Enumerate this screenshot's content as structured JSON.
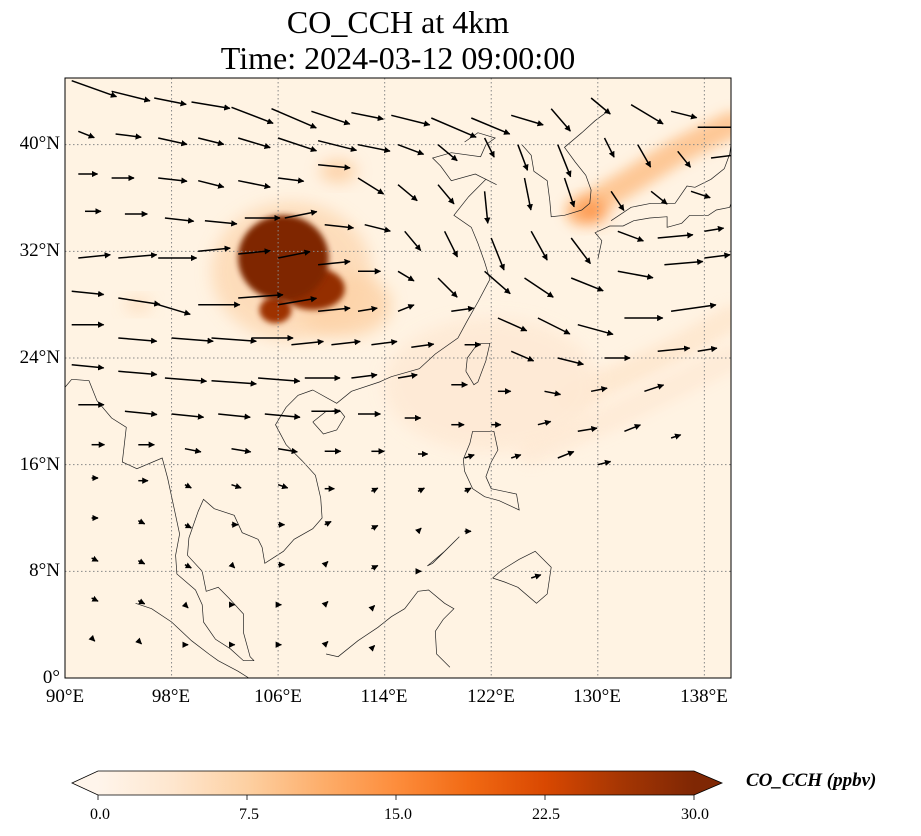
{
  "title": {
    "line1": "CO_CCH at 4km",
    "line2": "Time: 2024-03-12 09:00:00"
  },
  "map": {
    "extent": {
      "lon_min": 90,
      "lon_max": 140,
      "lat_min": 0,
      "lat_max": 45
    },
    "lat_ticks": [
      {
        "value": 40,
        "label": "40°N"
      },
      {
        "value": 32,
        "label": "32°N"
      },
      {
        "value": 24,
        "label": "24°N"
      },
      {
        "value": 16,
        "label": "16°N"
      },
      {
        "value": 8,
        "label": "8°N"
      },
      {
        "value": 0,
        "label": "0°"
      }
    ],
    "lon_ticks": [
      {
        "value": 90,
        "label": "90°E"
      },
      {
        "value": 98,
        "label": "98°E"
      },
      {
        "value": 106,
        "label": "106°E"
      },
      {
        "value": 114,
        "label": "114°E"
      },
      {
        "value": 122,
        "label": "122°E"
      },
      {
        "value": 130,
        "label": "130°E"
      },
      {
        "value": 138,
        "label": "138°E"
      }
    ],
    "gridlines": true,
    "gridline_color": "#888888",
    "background_color": "#fff3e3",
    "coastline_color": "#222222",
    "arrow_color": "#000000"
  },
  "colorbar": {
    "label": "CO_CCH (ppbv)",
    "min": 0,
    "max": 30,
    "extend": "both",
    "colormap": [
      "#fff5eb",
      "#fee6ce",
      "#fdd0a2",
      "#fdae6b",
      "#fd8d3c",
      "#f16913",
      "#d94801",
      "#a63603",
      "#7f2704"
    ],
    "ticks": [
      {
        "value": 0,
        "label": "0.0"
      },
      {
        "value": 7.5,
        "label": "7.5"
      },
      {
        "value": 15,
        "label": "15.0"
      },
      {
        "value": 22.5,
        "label": "22.5"
      },
      {
        "value": 30,
        "label": "30.0"
      }
    ]
  },
  "concentration_features": [
    {
      "name": "sichuan-basin-core",
      "lon": 106.4,
      "lat": 31.5,
      "rx": 3.4,
      "ry": 3.2,
      "value": 30
    },
    {
      "name": "sichuan-basin-south",
      "lon": 108.6,
      "lat": 29.2,
      "rx": 2.4,
      "ry": 1.6,
      "value": 28
    },
    {
      "name": "sichuan-basin-tail",
      "lon": 105.8,
      "lat": 27.6,
      "rx": 1.2,
      "ry": 1.0,
      "value": 27
    },
    {
      "name": "basin-halo",
      "lon": 107.0,
      "lat": 30.5,
      "rx": 6.0,
      "ry": 5.2,
      "value": 6
    },
    {
      "name": "hunan-plume",
      "lon": 111.0,
      "lat": 28.0,
      "rx": 3.5,
      "ry": 2.4,
      "value": 7
    },
    {
      "name": "north-china-spot",
      "lon": 110.5,
      "lat": 38.0,
      "rx": 1.4,
      "ry": 0.8,
      "value": 8
    },
    {
      "name": "korea-japan-spot",
      "lon": 129.5,
      "lat": 35.0,
      "rx": 1.2,
      "ry": 0.9,
      "value": 15
    },
    {
      "name": "myanmar-spot",
      "lon": 95.5,
      "lat": 28.0,
      "rx": 1.0,
      "ry": 0.5,
      "value": 6
    },
    {
      "name": "east-sea-haze",
      "lon": 122.0,
      "lat": 22.0,
      "rx": 8.0,
      "ry": 5.0,
      "value": 3
    }
  ],
  "plume_bands": [
    {
      "name": "japan-northeast-plume",
      "points": [
        [
          128.5,
          35.0
        ],
        [
          132.0,
          37.0
        ],
        [
          136.0,
          39.5
        ],
        [
          140.0,
          41.5
        ]
      ],
      "value": 10
    },
    {
      "name": "pacific-southeast-plume",
      "points": [
        [
          128.0,
          21.0
        ],
        [
          132.5,
          23.0
        ],
        [
          136.5,
          25.0
        ],
        [
          140.0,
          27.0
        ]
      ],
      "value": 4
    },
    {
      "name": "pacific-band-2",
      "points": [
        [
          125.0,
          17.0
        ],
        [
          131.0,
          19.5
        ],
        [
          136.0,
          22.0
        ],
        [
          140.0,
          24.0
        ]
      ],
      "value": 3
    }
  ],
  "wind_vectors": [
    {
      "lon": 90.5,
      "lat": 44.8,
      "u": 14,
      "v": -5
    },
    {
      "lon": 93.5,
      "lat": 44.0,
      "u": 12,
      "v": -3
    },
    {
      "lon": 96.7,
      "lat": 43.5,
      "u": 10,
      "v": -2
    },
    {
      "lon": 99.5,
      "lat": 43.2,
      "u": 12,
      "v": -2
    },
    {
      "lon": 102.5,
      "lat": 42.8,
      "u": 13,
      "v": -5
    },
    {
      "lon": 105.5,
      "lat": 42.7,
      "u": 14,
      "v": -6
    },
    {
      "lon": 108.5,
      "lat": 42.5,
      "u": 12,
      "v": -4
    },
    {
      "lon": 111.5,
      "lat": 42.4,
      "u": 10,
      "v": -2
    },
    {
      "lon": 114.5,
      "lat": 42.2,
      "u": 12,
      "v": -3
    },
    {
      "lon": 117.5,
      "lat": 42.0,
      "u": 14,
      "v": -6
    },
    {
      "lon": 120.5,
      "lat": 42.0,
      "u": 12,
      "v": -5
    },
    {
      "lon": 123.5,
      "lat": 42.2,
      "u": 10,
      "v": -3
    },
    {
      "lon": 126.5,
      "lat": 42.7,
      "u": 6,
      "v": -7
    },
    {
      "lon": 129.5,
      "lat": 43.5,
      "u": 6,
      "v": -5
    },
    {
      "lon": 132.5,
      "lat": 43.0,
      "u": 10,
      "v": -6
    },
    {
      "lon": 135.5,
      "lat": 42.5,
      "u": 8,
      "v": -2
    },
    {
      "lon": 137.5,
      "lat": 41.3,
      "u": 13,
      "v": 0
    },
    {
      "lon": 91.0,
      "lat": 41.0,
      "u": 5,
      "v": -2
    },
    {
      "lon": 93.8,
      "lat": 40.8,
      "u": 8,
      "v": -1
    },
    {
      "lon": 97.0,
      "lat": 40.5,
      "u": 9,
      "v": -2
    },
    {
      "lon": 100.0,
      "lat": 40.5,
      "u": 8,
      "v": -2
    },
    {
      "lon": 103.0,
      "lat": 40.5,
      "u": 10,
      "v": -3
    },
    {
      "lon": 106.0,
      "lat": 40.5,
      "u": 12,
      "v": -4
    },
    {
      "lon": 109.0,
      "lat": 40.3,
      "u": 12,
      "v": -3
    },
    {
      "lon": 112.0,
      "lat": 40.0,
      "u": 10,
      "v": -2
    },
    {
      "lon": 115.0,
      "lat": 40.0,
      "u": 8,
      "v": -3
    },
    {
      "lon": 118.0,
      "lat": 40.0,
      "u": 6,
      "v": -5
    },
    {
      "lon": 121.5,
      "lat": 40.5,
      "u": 3,
      "v": -6
    },
    {
      "lon": 124.0,
      "lat": 40.0,
      "u": 3,
      "v": -8
    },
    {
      "lon": 127.0,
      "lat": 40.0,
      "u": 4,
      "v": -10
    },
    {
      "lon": 130.5,
      "lat": 40.5,
      "u": 3,
      "v": -6
    },
    {
      "lon": 133.0,
      "lat": 40.0,
      "u": 4,
      "v": -7
    },
    {
      "lon": 136.0,
      "lat": 39.5,
      "u": 4,
      "v": -5
    },
    {
      "lon": 138.5,
      "lat": 39.0,
      "u": 8,
      "v": 1
    },
    {
      "lon": 91.0,
      "lat": 37.8,
      "u": 6,
      "v": 0
    },
    {
      "lon": 93.5,
      "lat": 37.5,
      "u": 7,
      "v": 0
    },
    {
      "lon": 97.0,
      "lat": 37.5,
      "u": 9,
      "v": -1
    },
    {
      "lon": 100.0,
      "lat": 37.3,
      "u": 8,
      "v": -2
    },
    {
      "lon": 103.0,
      "lat": 37.3,
      "u": 10,
      "v": -2
    },
    {
      "lon": 106.0,
      "lat": 37.5,
      "u": 8,
      "v": -1
    },
    {
      "lon": 109.0,
      "lat": 38.5,
      "u": 10,
      "v": -1
    },
    {
      "lon": 112.0,
      "lat": 37.5,
      "u": 8,
      "v": -5
    },
    {
      "lon": 115.0,
      "lat": 37.0,
      "u": 6,
      "v": -5
    },
    {
      "lon": 118.0,
      "lat": 37.0,
      "u": 5,
      "v": -6
    },
    {
      "lon": 121.5,
      "lat": 36.5,
      "u": 1,
      "v": -10
    },
    {
      "lon": 124.5,
      "lat": 37.5,
      "u": 2,
      "v": -10
    },
    {
      "lon": 127.5,
      "lat": 37.5,
      "u": 3,
      "v": -9
    },
    {
      "lon": 131.0,
      "lat": 36.5,
      "u": 4,
      "v": -6
    },
    {
      "lon": 134.0,
      "lat": 36.5,
      "u": 5,
      "v": -4
    },
    {
      "lon": 137.0,
      "lat": 36.5,
      "u": 6,
      "v": -2
    },
    {
      "lon": 91.5,
      "lat": 35.0,
      "u": 5,
      "v": 0
    },
    {
      "lon": 94.5,
      "lat": 34.8,
      "u": 7,
      "v": 0
    },
    {
      "lon": 97.5,
      "lat": 34.5,
      "u": 9,
      "v": -1
    },
    {
      "lon": 100.5,
      "lat": 34.3,
      "u": 10,
      "v": -1
    },
    {
      "lon": 103.5,
      "lat": 34.5,
      "u": 11,
      "v": 0
    },
    {
      "lon": 106.5,
      "lat": 34.5,
      "u": 10,
      "v": 2
    },
    {
      "lon": 109.5,
      "lat": 34.0,
      "u": 9,
      "v": -1
    },
    {
      "lon": 112.5,
      "lat": 34.0,
      "u": 8,
      "v": -2
    },
    {
      "lon": 115.5,
      "lat": 33.5,
      "u": 5,
      "v": -6
    },
    {
      "lon": 118.5,
      "lat": 33.5,
      "u": 4,
      "v": -8
    },
    {
      "lon": 122.0,
      "lat": 33.0,
      "u": 4,
      "v": -10
    },
    {
      "lon": 125.0,
      "lat": 33.5,
      "u": 5,
      "v": -9
    },
    {
      "lon": 128.0,
      "lat": 33.0,
      "u": 6,
      "v": -8
    },
    {
      "lon": 131.5,
      "lat": 33.5,
      "u": 8,
      "v": -3
    },
    {
      "lon": 134.5,
      "lat": 33.0,
      "u": 11,
      "v": 1
    },
    {
      "lon": 138.0,
      "lat": 33.5,
      "u": 6,
      "v": 1
    },
    {
      "lon": 91.0,
      "lat": 31.5,
      "u": 10,
      "v": 1
    },
    {
      "lon": 94.0,
      "lat": 31.5,
      "u": 12,
      "v": 1
    },
    {
      "lon": 97.0,
      "lat": 31.5,
      "u": 12,
      "v": 0
    },
    {
      "lon": 100.0,
      "lat": 32.0,
      "u": 10,
      "v": 1
    },
    {
      "lon": 103.0,
      "lat": 31.8,
      "u": 10,
      "v": 1
    },
    {
      "lon": 106.0,
      "lat": 31.5,
      "u": 10,
      "v": 2
    },
    {
      "lon": 109.0,
      "lat": 31.0,
      "u": 10,
      "v": 1
    },
    {
      "lon": 112.0,
      "lat": 30.5,
      "u": 7,
      "v": 0
    },
    {
      "lon": 115.0,
      "lat": 30.5,
      "u": 5,
      "v": -3
    },
    {
      "lon": 118.0,
      "lat": 30.0,
      "u": 6,
      "v": -6
    },
    {
      "lon": 121.5,
      "lat": 30.5,
      "u": 8,
      "v": -7
    },
    {
      "lon": 124.5,
      "lat": 30.0,
      "u": 9,
      "v": -6
    },
    {
      "lon": 128.0,
      "lat": 30.0,
      "u": 10,
      "v": -4
    },
    {
      "lon": 131.5,
      "lat": 30.5,
      "u": 11,
      "v": -2
    },
    {
      "lon": 135.0,
      "lat": 31.0,
      "u": 12,
      "v": 1
    },
    {
      "lon": 138.0,
      "lat": 31.5,
      "u": 8,
      "v": 1
    },
    {
      "lon": 90.5,
      "lat": 29.0,
      "u": 10,
      "v": -1
    },
    {
      "lon": 94.0,
      "lat": 28.5,
      "u": 13,
      "v": -2
    },
    {
      "lon": 97.0,
      "lat": 28.0,
      "u": 10,
      "v": -3
    },
    {
      "lon": 100.0,
      "lat": 28.0,
      "u": 13,
      "v": 0
    },
    {
      "lon": 103.0,
      "lat": 28.5,
      "u": 14,
      "v": 1
    },
    {
      "lon": 106.0,
      "lat": 28.0,
      "u": 12,
      "v": 2
    },
    {
      "lon": 109.0,
      "lat": 27.5,
      "u": 10,
      "v": 1
    },
    {
      "lon": 112.0,
      "lat": 27.5,
      "u": 6,
      "v": 1
    },
    {
      "lon": 115.0,
      "lat": 27.5,
      "u": 5,
      "v": 2
    },
    {
      "lon": 119.0,
      "lat": 27.5,
      "u": 7,
      "v": 1
    },
    {
      "lon": 122.5,
      "lat": 27.0,
      "u": 9,
      "v": -4
    },
    {
      "lon": 125.5,
      "lat": 27.0,
      "u": 10,
      "v": -5
    },
    {
      "lon": 128.5,
      "lat": 26.5,
      "u": 11,
      "v": -3
    },
    {
      "lon": 132.0,
      "lat": 27.0,
      "u": 12,
      "v": 0
    },
    {
      "lon": 135.5,
      "lat": 27.5,
      "u": 14,
      "v": 2
    },
    {
      "lon": 90.5,
      "lat": 26.5,
      "u": 10,
      "v": 0
    },
    {
      "lon": 94.0,
      "lat": 25.5,
      "u": 12,
      "v": -1
    },
    {
      "lon": 98.0,
      "lat": 25.5,
      "u": 13,
      "v": -1
    },
    {
      "lon": 101.0,
      "lat": 25.5,
      "u": 14,
      "v": -1
    },
    {
      "lon": 104.0,
      "lat": 25.5,
      "u": 13,
      "v": 0
    },
    {
      "lon": 107.0,
      "lat": 25.0,
      "u": 10,
      "v": 1
    },
    {
      "lon": 110.0,
      "lat": 25.0,
      "u": 9,
      "v": 1
    },
    {
      "lon": 113.0,
      "lat": 25.0,
      "u": 8,
      "v": 1
    },
    {
      "lon": 116.0,
      "lat": 24.8,
      "u": 7,
      "v": 1
    },
    {
      "lon": 120.0,
      "lat": 25.0,
      "u": 5,
      "v": 0
    },
    {
      "lon": 123.5,
      "lat": 24.5,
      "u": 7,
      "v": -3
    },
    {
      "lon": 127.0,
      "lat": 24.0,
      "u": 8,
      "v": -2
    },
    {
      "lon": 130.5,
      "lat": 24.0,
      "u": 8,
      "v": 0
    },
    {
      "lon": 134.5,
      "lat": 24.5,
      "u": 10,
      "v": 1
    },
    {
      "lon": 137.5,
      "lat": 24.5,
      "u": 6,
      "v": 1
    },
    {
      "lon": 90.5,
      "lat": 23.5,
      "u": 10,
      "v": -1
    },
    {
      "lon": 94.0,
      "lat": 23.0,
      "u": 12,
      "v": -1
    },
    {
      "lon": 97.5,
      "lat": 22.5,
      "u": 13,
      "v": -1
    },
    {
      "lon": 101.0,
      "lat": 22.3,
      "u": 14,
      "v": -1
    },
    {
      "lon": 104.5,
      "lat": 22.5,
      "u": 13,
      "v": -1
    },
    {
      "lon": 108.0,
      "lat": 22.5,
      "u": 11,
      "v": 0
    },
    {
      "lon": 111.5,
      "lat": 22.5,
      "u": 8,
      "v": 1
    },
    {
      "lon": 115.0,
      "lat": 22.5,
      "u": 6,
      "v": 1
    },
    {
      "lon": 119.0,
      "lat": 22.0,
      "u": 5,
      "v": 0
    },
    {
      "lon": 122.5,
      "lat": 21.5,
      "u": 4,
      "v": 0
    },
    {
      "lon": 126.0,
      "lat": 21.5,
      "u": 5,
      "v": -1
    },
    {
      "lon": 129.5,
      "lat": 21.5,
      "u": 5,
      "v": 1
    },
    {
      "lon": 133.5,
      "lat": 21.5,
      "u": 6,
      "v": 2
    },
    {
      "lon": 91.0,
      "lat": 20.5,
      "u": 8,
      "v": 0
    },
    {
      "lon": 94.5,
      "lat": 20.0,
      "u": 10,
      "v": -1
    },
    {
      "lon": 98.0,
      "lat": 19.8,
      "u": 10,
      "v": -1
    },
    {
      "lon": 101.5,
      "lat": 19.8,
      "u": 10,
      "v": -1
    },
    {
      "lon": 105.0,
      "lat": 19.8,
      "u": 11,
      "v": -1
    },
    {
      "lon": 108.5,
      "lat": 20.0,
      "u": 9,
      "v": 0
    },
    {
      "lon": 112.0,
      "lat": 19.8,
      "u": 7,
      "v": 0
    },
    {
      "lon": 115.5,
      "lat": 19.5,
      "u": 5,
      "v": 0
    },
    {
      "lon": 119.0,
      "lat": 19.0,
      "u": 4,
      "v": 0
    },
    {
      "lon": 122.0,
      "lat": 19.0,
      "u": 3,
      "v": 0
    },
    {
      "lon": 125.5,
      "lat": 19.0,
      "u": 4,
      "v": 1
    },
    {
      "lon": 128.5,
      "lat": 18.5,
      "u": 6,
      "v": 1
    },
    {
      "lon": 132.0,
      "lat": 18.5,
      "u": 5,
      "v": 2
    },
    {
      "lon": 135.5,
      "lat": 18.0,
      "u": 3,
      "v": 1
    },
    {
      "lon": 92.0,
      "lat": 17.5,
      "u": 4,
      "v": 0
    },
    {
      "lon": 95.5,
      "lat": 17.5,
      "u": 5,
      "v": 0
    },
    {
      "lon": 99.0,
      "lat": 17.2,
      "u": 5,
      "v": -1
    },
    {
      "lon": 102.5,
      "lat": 17.2,
      "u": 6,
      "v": -1
    },
    {
      "lon": 106.0,
      "lat": 17.2,
      "u": 6,
      "v": -1
    },
    {
      "lon": 109.5,
      "lat": 17.0,
      "u": 5,
      "v": 0
    },
    {
      "lon": 113.0,
      "lat": 17.0,
      "u": 4,
      "v": 0
    },
    {
      "lon": 116.5,
      "lat": 16.8,
      "u": 3,
      "v": 0
    },
    {
      "lon": 120.0,
      "lat": 16.5,
      "u": 3,
      "v": 1
    },
    {
      "lon": 123.5,
      "lat": 16.5,
      "u": 3,
      "v": 1
    },
    {
      "lon": 127.0,
      "lat": 16.5,
      "u": 5,
      "v": 2
    },
    {
      "lon": 130.0,
      "lat": 16.0,
      "u": 4,
      "v": 1
    },
    {
      "lon": 92.0,
      "lat": 15.0,
      "u": 2,
      "v": 0
    },
    {
      "lon": 95.5,
      "lat": 14.8,
      "u": 3,
      "v": 0
    },
    {
      "lon": 99.0,
      "lat": 14.5,
      "u": 2,
      "v": -1
    },
    {
      "lon": 102.5,
      "lat": 14.5,
      "u": 3,
      "v": -1
    },
    {
      "lon": 106.0,
      "lat": 14.5,
      "u": 3,
      "v": -1
    },
    {
      "lon": 109.5,
      "lat": 14.2,
      "u": 3,
      "v": 0
    },
    {
      "lon": 113.0,
      "lat": 14.0,
      "u": 2,
      "v": 1
    },
    {
      "lon": 116.5,
      "lat": 14.0,
      "u": 2,
      "v": 1
    },
    {
      "lon": 120.0,
      "lat": 14.0,
      "u": 2,
      "v": 1
    },
    {
      "lon": 92.0,
      "lat": 12.0,
      "u": 2,
      "v": 0
    },
    {
      "lon": 95.5,
      "lat": 11.8,
      "u": 2,
      "v": -1
    },
    {
      "lon": 99.0,
      "lat": 11.5,
      "u": 2,
      "v": -1
    },
    {
      "lon": 102.5,
      "lat": 11.5,
      "u": 2,
      "v": 0
    },
    {
      "lon": 106.0,
      "lat": 11.5,
      "u": 2,
      "v": 0
    },
    {
      "lon": 109.5,
      "lat": 11.5,
      "u": 2,
      "v": 1
    },
    {
      "lon": 113.0,
      "lat": 11.2,
      "u": 2,
      "v": 1
    },
    {
      "lon": 116.5,
      "lat": 11.0,
      "u": 1,
      "v": 1
    },
    {
      "lon": 120.0,
      "lat": 11.0,
      "u": 2,
      "v": 0
    },
    {
      "lon": 92.0,
      "lat": 9.0,
      "u": 2,
      "v": -1
    },
    {
      "lon": 95.5,
      "lat": 8.8,
      "u": 2,
      "v": -1
    },
    {
      "lon": 99.0,
      "lat": 8.5,
      "u": 2,
      "v": -1
    },
    {
      "lon": 102.5,
      "lat": 8.5,
      "u": 1,
      "v": -1
    },
    {
      "lon": 106.0,
      "lat": 8.5,
      "u": 2,
      "v": 0
    },
    {
      "lon": 109.5,
      "lat": 8.5,
      "u": 1,
      "v": 1
    },
    {
      "lon": 113.0,
      "lat": 8.2,
      "u": 2,
      "v": 1
    },
    {
      "lon": 116.5,
      "lat": 8.0,
      "u": 1,
      "v": 0
    },
    {
      "lon": 125.0,
      "lat": 7.5,
      "u": 3,
      "v": 1
    },
    {
      "lon": 92.0,
      "lat": 6.0,
      "u": 2,
      "v": -1
    },
    {
      "lon": 95.5,
      "lat": 5.8,
      "u": 2,
      "v": -1
    },
    {
      "lon": 99.0,
      "lat": 5.5,
      "u": 1,
      "v": -1
    },
    {
      "lon": 102.5,
      "lat": 5.5,
      "u": 1,
      "v": 0
    },
    {
      "lon": 106.0,
      "lat": 5.5,
      "u": 1,
      "v": 0
    },
    {
      "lon": 109.5,
      "lat": 5.5,
      "u": 1,
      "v": 1
    },
    {
      "lon": 113.0,
      "lat": 5.2,
      "u": 1,
      "v": 1
    },
    {
      "lon": 92.0,
      "lat": 3.0,
      "u": 1,
      "v": -1
    },
    {
      "lon": 95.5,
      "lat": 2.8,
      "u": 1,
      "v": -1
    },
    {
      "lon": 99.0,
      "lat": 2.5,
      "u": 1,
      "v": 0
    },
    {
      "lon": 102.5,
      "lat": 2.5,
      "u": 1,
      "v": 0
    },
    {
      "lon": 106.0,
      "lat": 2.5,
      "u": 1,
      "v": 0
    },
    {
      "lon": 109.5,
      "lat": 2.5,
      "u": 1,
      "v": 1
    },
    {
      "lon": 113.0,
      "lat": 2.2,
      "u": 1,
      "v": 1
    }
  ]
}
